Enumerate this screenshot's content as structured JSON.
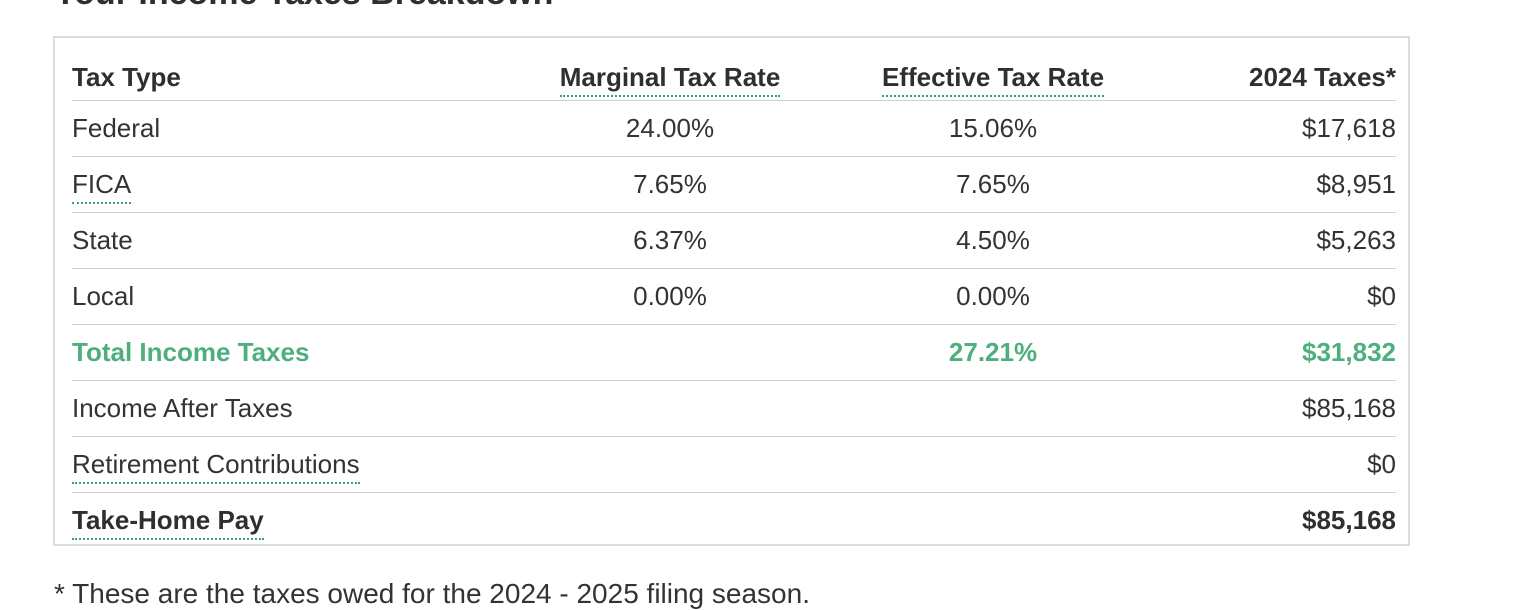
{
  "heading": "Your Income Taxes Breakdown",
  "table": {
    "headers": {
      "tax_type": "Tax Type",
      "marginal": "Marginal Tax Rate",
      "effective": "Effective Tax Rate",
      "taxes": "2024 Taxes*"
    },
    "rows": {
      "federal": {
        "label": "Federal",
        "marginal": "24.00%",
        "effective": "15.06%",
        "taxes": "$17,618"
      },
      "fica": {
        "label": "FICA",
        "marginal": "7.65%",
        "effective": "7.65%",
        "taxes": "$8,951"
      },
      "state": {
        "label": "State",
        "marginal": "6.37%",
        "effective": "4.50%",
        "taxes": "$5,263"
      },
      "local": {
        "label": "Local",
        "marginal": "0.00%",
        "effective": "0.00%",
        "taxes": "$0"
      },
      "total": {
        "label": "Total Income Taxes",
        "effective": "27.21%",
        "taxes": "$31,832"
      },
      "after": {
        "label": "Income After Taxes",
        "taxes": "$85,168"
      },
      "retire": {
        "label": "Retirement Contributions",
        "taxes": "$0"
      },
      "takehome": {
        "label": "Take-Home Pay",
        "taxes": "$85,168"
      }
    }
  },
  "footnote": "* These are the taxes owed for the 2024 - 2025 filing season.",
  "colors": {
    "accent_green": "#4caf7d",
    "dotted_underline": "#3a9c7a",
    "border": "#dcdcdc"
  }
}
